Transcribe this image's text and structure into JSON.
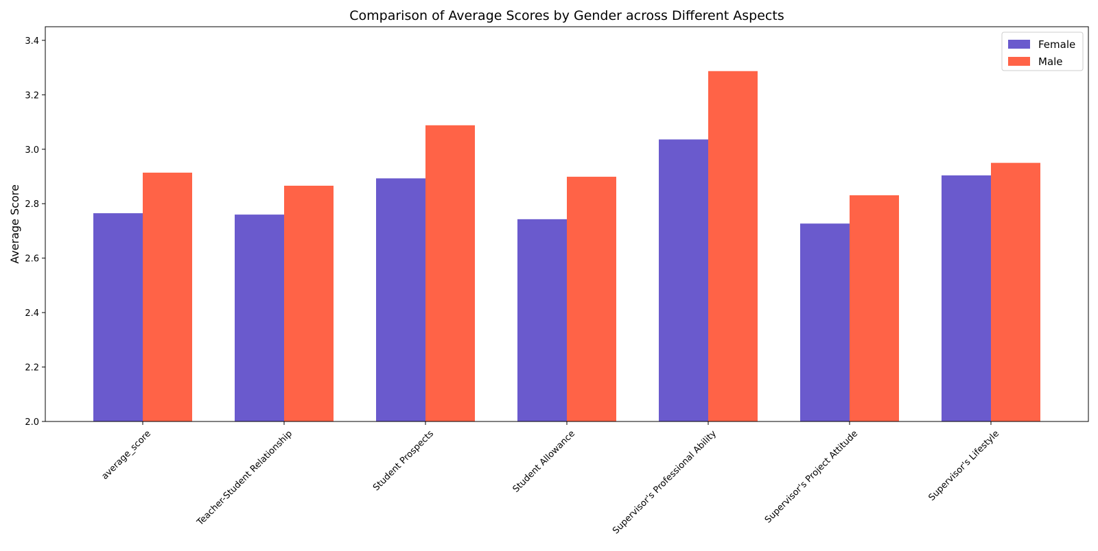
{
  "chart_data": {
    "type": "bar",
    "title": "Comparison of Average Scores by Gender across Different Aspects",
    "xlabel": "",
    "ylabel": "Average Score",
    "categories": [
      "average_score",
      "Teacher-Student Relationship",
      "Student Prospects",
      "Student Allowance",
      "Supervisor's Professional Ability",
      "Supervisor's Project Attitude",
      "Supervisor's Lifestyle"
    ],
    "series": [
      {
        "name": "Female",
        "color": "#6a5acd",
        "values": [
          2.765,
          2.76,
          2.893,
          2.743,
          3.036,
          2.727,
          2.904
        ]
      },
      {
        "name": "Male",
        "color": "#ff6347",
        "values": [
          2.914,
          2.866,
          3.088,
          2.899,
          3.287,
          2.831,
          2.95
        ]
      }
    ],
    "ylim": [
      2.0,
      3.45
    ],
    "yticks": [
      2.0,
      2.2,
      2.4,
      2.6,
      2.8,
      3.0,
      3.2,
      3.4
    ],
    "ytick_labels": [
      "2.0",
      "2.2",
      "2.4",
      "2.6",
      "2.8",
      "3.0",
      "3.2",
      "3.4"
    ],
    "grid": false,
    "legend_position": "top-right"
  }
}
